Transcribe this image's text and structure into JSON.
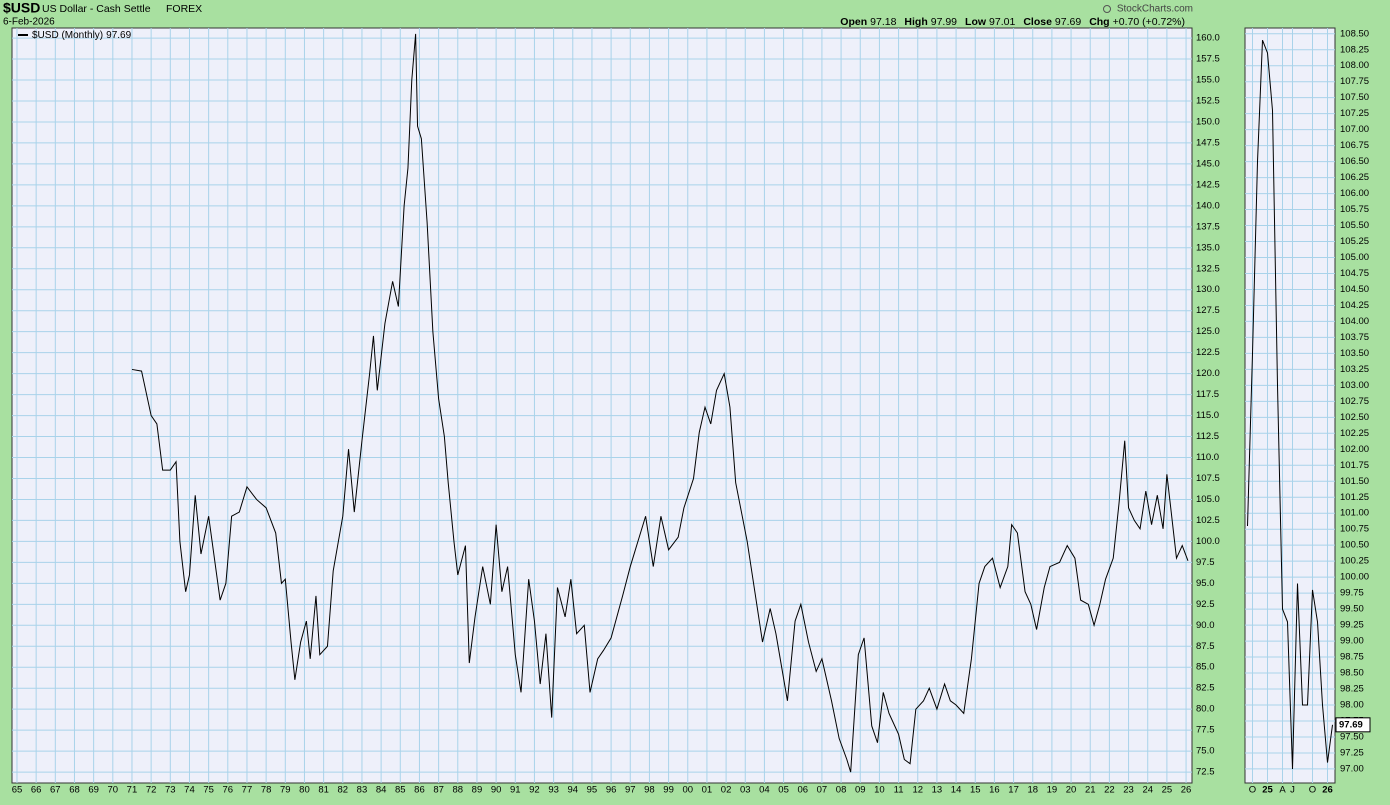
{
  "header": {
    "symbol": "$USD",
    "name": "US Dollar - Cash Settle",
    "exchange": "FOREX",
    "date": "6-Feb-2026",
    "source": "StockCharts.com",
    "quote": [
      {
        "label": "Open",
        "value": "97.18"
      },
      {
        "label": "High",
        "value": "97.99"
      },
      {
        "label": "Low",
        "value": "97.01"
      },
      {
        "label": "Close",
        "value": "97.69"
      },
      {
        "label": "Chg",
        "value": "+0.70 (+0.72%)"
      }
    ]
  },
  "chart_data": [
    {
      "type": "line",
      "legend_value": "97.69",
      "grid": true,
      "xlim": [
        1964.74,
        2026.31
      ],
      "ylim": [
        71.2,
        161.2
      ],
      "x": [
        1971.0,
        1971.5,
        1972.0,
        1972.3,
        1972.6,
        1973.0,
        1973.3,
        1973.5,
        1973.8,
        1974.0,
        1974.3,
        1974.6,
        1975.0,
        1975.3,
        1975.6,
        1975.9,
        1976.2,
        1976.6,
        1977.0,
        1977.5,
        1978.0,
        1978.5,
        1978.8,
        1979.0,
        1979.3,
        1979.5,
        1979.8,
        1980.1,
        1980.3,
        1980.6,
        1980.8,
        1981.2,
        1981.5,
        1982.0,
        1982.3,
        1982.6,
        1983.0,
        1983.4,
        1983.6,
        1983.8,
        1984.2,
        1984.6,
        1984.9,
        1985.2,
        1985.4,
        1985.6,
        1985.8,
        1985.9,
        1986.1,
        1986.4,
        1986.7,
        1987.0,
        1987.3,
        1987.5,
        1987.8,
        1988.0,
        1988.4,
        1988.6,
        1988.9,
        1989.3,
        1989.7,
        1990.0,
        1990.3,
        1990.6,
        1991.0,
        1991.3,
        1991.7,
        1992.0,
        1992.3,
        1992.6,
        1992.9,
        1993.2,
        1993.6,
        1993.9,
        1994.2,
        1994.6,
        1994.9,
        1995.3,
        1995.6,
        1996.0,
        1996.6,
        1997.0,
        1997.4,
        1997.8,
        1998.2,
        1998.6,
        1999.0,
        1999.5,
        1999.8,
        2000.3,
        2000.6,
        2000.9,
        2001.2,
        2001.5,
        2001.9,
        2002.2,
        2002.5,
        2002.8,
        2003.1,
        2003.5,
        2003.9,
        2004.3,
        2004.6,
        2004.9,
        2005.2,
        2005.6,
        2005.9,
        2006.3,
        2006.7,
        2007.0,
        2007.5,
        2007.9,
        2008.3,
        2008.5,
        2008.9,
        2009.2,
        2009.6,
        2009.9,
        2010.2,
        2010.5,
        2011.0,
        2011.3,
        2011.6,
        2011.9,
        2012.3,
        2012.6,
        2013.0,
        2013.4,
        2013.7,
        2014.0,
        2014.4,
        2014.8,
        2015.2,
        2015.5,
        2015.9,
        2016.3,
        2016.7,
        2016.9,
        2017.2,
        2017.6,
        2017.9,
        2018.2,
        2018.6,
        2018.9,
        2019.4,
        2019.8,
        2020.2,
        2020.5,
        2020.9,
        2021.2,
        2021.5,
        2021.8,
        2022.2,
        2022.5,
        2022.8,
        2023.0,
        2023.3,
        2023.6,
        2023.9,
        2024.2,
        2024.5,
        2024.8,
        2025.0,
        2025.2,
        2025.5,
        2025.8,
        2026.1
      ],
      "series": [
        {
          "name": "$USD (Monthly)",
          "color": "#000000",
          "values": [
            120.5,
            120.3,
            115,
            114,
            108.5,
            108.5,
            109.5,
            100,
            94,
            96,
            105.5,
            98.5,
            103,
            98,
            93,
            95,
            103,
            103.5,
            106.5,
            105,
            104,
            101,
            95,
            95.5,
            88,
            83.5,
            88,
            90.5,
            86,
            93.5,
            86.5,
            87.5,
            96.5,
            103,
            111,
            103.5,
            112,
            120,
            124.5,
            118,
            126,
            131,
            128,
            140,
            144.5,
            155,
            160.5,
            149.5,
            148,
            138,
            125,
            117,
            112.5,
            107,
            100,
            96,
            99.5,
            85.5,
            91,
            97,
            92.5,
            102,
            94,
            97,
            86.5,
            82,
            95.5,
            90.5,
            83,
            89,
            79,
            94.5,
            91,
            95.5,
            89,
            90,
            82,
            86,
            87,
            88.5,
            93.5,
            97,
            100,
            103,
            97,
            103,
            99,
            100.5,
            104,
            107.5,
            113,
            116,
            114,
            118,
            120,
            116,
            107,
            103.5,
            100,
            94,
            88,
            92,
            89,
            85,
            81,
            90.5,
            92.5,
            88,
            84.5,
            86,
            81,
            76.5,
            74,
            72.5,
            86.5,
            88.5,
            78,
            76,
            82,
            79.5,
            77,
            74,
            73.5,
            80,
            81,
            82.5,
            80,
            83,
            81,
            80.5,
            79.5,
            86,
            95,
            97,
            98,
            94.5,
            97,
            102,
            101,
            94,
            92.5,
            89.5,
            94.5,
            97,
            97.5,
            99.5,
            98,
            93,
            92.5,
            90,
            92.5,
            95.5,
            98,
            104.5,
            112,
            104,
            102.5,
            101.5,
            106,
            102,
            105.5,
            101.5,
            108,
            104,
            98,
            99.5,
            97.69
          ]
        }
      ],
      "xticks": [
        {
          "value": 1965,
          "label": "65"
        },
        {
          "value": 1966,
          "label": "66"
        },
        {
          "value": 1967,
          "label": "67"
        },
        {
          "value": 1968,
          "label": "68"
        },
        {
          "value": 1969,
          "label": "69"
        },
        {
          "value": 1970,
          "label": "70"
        },
        {
          "value": 1971,
          "label": "71"
        },
        {
          "value": 1972,
          "label": "72"
        },
        {
          "value": 1973,
          "label": "73"
        },
        {
          "value": 1974,
          "label": "74"
        },
        {
          "value": 1975,
          "label": "75"
        },
        {
          "value": 1976,
          "label": "76"
        },
        {
          "value": 1977,
          "label": "77"
        },
        {
          "value": 1978,
          "label": "78"
        },
        {
          "value": 1979,
          "label": "79"
        },
        {
          "value": 1980,
          "label": "80"
        },
        {
          "value": 1981,
          "label": "81"
        },
        {
          "value": 1982,
          "label": "82"
        },
        {
          "value": 1983,
          "label": "83"
        },
        {
          "value": 1984,
          "label": "84"
        },
        {
          "value": 1985,
          "label": "85"
        },
        {
          "value": 1986,
          "label": "86"
        },
        {
          "value": 1987,
          "label": "87"
        },
        {
          "value": 1988,
          "label": "88"
        },
        {
          "value": 1989,
          "label": "89"
        },
        {
          "value": 1990,
          "label": "90"
        },
        {
          "value": 1991,
          "label": "91"
        },
        {
          "value": 1992,
          "label": "92"
        },
        {
          "value": 1993,
          "label": "93"
        },
        {
          "value": 1994,
          "label": "94"
        },
        {
          "value": 1995,
          "label": "95"
        },
        {
          "value": 1996,
          "label": "96"
        },
        {
          "value": 1997,
          "label": "97"
        },
        {
          "value": 1998,
          "label": "98"
        },
        {
          "value": 1999,
          "label": "99"
        },
        {
          "value": 2000,
          "label": "00"
        },
        {
          "value": 2001,
          "label": "01"
        },
        {
          "value": 2002,
          "label": "02"
        },
        {
          "value": 2003,
          "label": "03"
        },
        {
          "value": 2004,
          "label": "04"
        },
        {
          "value": 2005,
          "label": "05"
        },
        {
          "value": 2006,
          "label": "06"
        },
        {
          "value": 2007,
          "label": "07"
        },
        {
          "value": 2008,
          "label": "08"
        },
        {
          "value": 2009,
          "label": "09"
        },
        {
          "value": 2010,
          "label": "10"
        },
        {
          "value": 2011,
          "label": "11"
        },
        {
          "value": 2012,
          "label": "12"
        },
        {
          "value": 2013,
          "label": "13"
        },
        {
          "value": 2014,
          "label": "14"
        },
        {
          "value": 2015,
          "label": "15"
        },
        {
          "value": 2016,
          "label": "16"
        },
        {
          "value": 2017,
          "label": "17"
        },
        {
          "value": 2018,
          "label": "18"
        },
        {
          "value": 2019,
          "label": "19"
        },
        {
          "value": 2020,
          "label": "20"
        },
        {
          "value": 2021,
          "label": "21"
        },
        {
          "value": 2022,
          "label": "22"
        },
        {
          "value": 2023,
          "label": "23"
        },
        {
          "value": 2024,
          "label": "24"
        },
        {
          "value": 2025,
          "label": "25"
        },
        {
          "value": 2026,
          "label": "26"
        }
      ],
      "yticks": [
        72.5,
        {
          "value": 75,
          "label": "75.0"
        },
        77.5,
        {
          "value": 80,
          "label": "80.0"
        },
        82.5,
        {
          "value": 85,
          "label": "85.0"
        },
        87.5,
        {
          "value": 90,
          "label": "90.0"
        },
        92.5,
        {
          "value": 95,
          "label": "95.0"
        },
        97.5,
        {
          "value": 100,
          "label": "100.0"
        },
        102.5,
        {
          "value": 105,
          "label": "105.0"
        },
        107.5,
        {
          "value": 110,
          "label": "110.0"
        },
        112.5,
        {
          "value": 115,
          "label": "115.0"
        },
        117.5,
        {
          "value": 120,
          "label": "120.0"
        },
        122.5,
        {
          "value": 125,
          "label": "125.0"
        },
        127.5,
        {
          "value": 130,
          "label": "130.0"
        },
        132.5,
        {
          "value": 135,
          "label": "135.0"
        },
        137.5,
        {
          "value": 140,
          "label": "140.0"
        },
        142.5,
        {
          "value": 145,
          "label": "145.0"
        },
        147.5,
        {
          "value": 150,
          "label": "150.0"
        },
        152.5,
        {
          "value": 155,
          "label": "155.0"
        },
        157.5,
        {
          "value": 160,
          "label": "160.0"
        }
      ]
    },
    {
      "type": "line",
      "grid": true,
      "last_label": "97.69",
      "ylim": [
        96.78,
        108.59
      ],
      "categories": [
        null,
        "O",
        null,
        null,
        "25",
        null,
        null,
        "A",
        null,
        "J",
        null,
        null,
        null,
        "O",
        null,
        null,
        "26",
        null
      ],
      "series": [
        {
          "color": "#000000",
          "values": [
            100.8,
            103.5,
            106.5,
            108.4,
            108.2,
            107.3,
            103,
            99.5,
            99.3,
            97.0,
            99.9,
            98.0,
            98.0,
            99.8,
            99.3,
            98.0,
            97.1,
            97.69
          ]
        }
      ],
      "yticks": [
        {
          "value": 97,
          "label": "97.00"
        },
        {
          "value": 97.25,
          "label": "97.25"
        },
        {
          "value": 97.5,
          "label": "97.50"
        },
        {
          "value": 97.75,
          "label": "97.75"
        },
        {
          "value": 98,
          "label": "98.00"
        },
        {
          "value": 98.25,
          "label": "98.25"
        },
        {
          "value": 98.5,
          "label": "98.50"
        },
        {
          "value": 98.75,
          "label": "98.75"
        },
        {
          "value": 99,
          "label": "99.00"
        },
        {
          "value": 99.25,
          "label": "99.25"
        },
        {
          "value": 99.5,
          "label": "99.50"
        },
        {
          "value": 99.75,
          "label": "99.75"
        },
        {
          "value": 100,
          "label": "100.00"
        },
        {
          "value": 100.25,
          "label": "100.25"
        },
        {
          "value": 100.5,
          "label": "100.50"
        },
        {
          "value": 100.75,
          "label": "100.75"
        },
        {
          "value": 101,
          "label": "101.00"
        },
        {
          "value": 101.25,
          "label": "101.25"
        },
        {
          "value": 101.5,
          "label": "101.50"
        },
        {
          "value": 101.75,
          "label": "101.75"
        },
        {
          "value": 102,
          "label": "102.00"
        },
        {
          "value": 102.25,
          "label": "102.25"
        },
        {
          "value": 102.5,
          "label": "102.50"
        },
        {
          "value": 102.75,
          "label": "102.75"
        },
        {
          "value": 103,
          "label": "103.00"
        },
        {
          "value": 103.25,
          "label": "103.25"
        },
        {
          "value": 103.5,
          "label": "103.50"
        },
        {
          "value": 103.75,
          "label": "103.75"
        },
        {
          "value": 104,
          "label": "104.00"
        },
        {
          "value": 104.25,
          "label": "104.25"
        },
        {
          "value": 104.5,
          "label": "104.50"
        },
        {
          "value": 104.75,
          "label": "104.75"
        },
        {
          "value": 105,
          "label": "105.00"
        },
        {
          "value": 105.25,
          "label": "105.25"
        },
        {
          "value": 105.5,
          "label": "105.50"
        },
        {
          "value": 105.75,
          "label": "105.75"
        },
        {
          "value": 106,
          "label": "106.00"
        },
        {
          "value": 106.25,
          "label": "106.25"
        },
        {
          "value": 106.5,
          "label": "106.50"
        },
        {
          "value": 106.75,
          "label": "106.75"
        },
        {
          "value": 107,
          "label": "107.00"
        },
        {
          "value": 107.25,
          "label": "107.25"
        },
        {
          "value": 107.5,
          "label": "107.50"
        },
        {
          "value": 107.75,
          "label": "107.75"
        },
        {
          "value": 108,
          "label": "108.00"
        },
        {
          "value": 108.25,
          "label": "108.25"
        },
        {
          "value": 108.5,
          "label": "108.50"
        }
      ]
    }
  ]
}
